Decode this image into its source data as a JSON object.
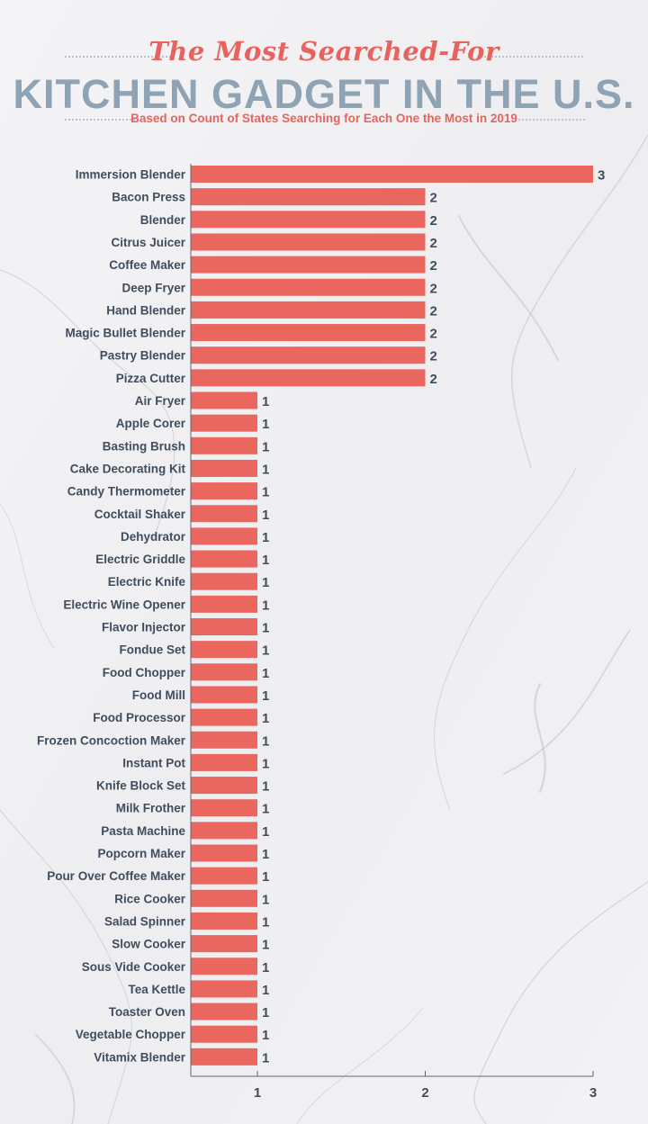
{
  "header": {
    "script_title": "The Most Searched-For",
    "main_title": "KITCHEN GADGET IN THE U.S.",
    "subtitle": "Based on Count of States Searching for Each One the Most in 2019"
  },
  "colors": {
    "bar": "#e9675f",
    "title_script": "#e8635d",
    "title_main": "#8ea3b4",
    "text": "#3f4d5c",
    "axis": "#5b6775"
  },
  "chart_data": {
    "type": "bar",
    "orientation": "horizontal",
    "title": "The Most Searched-For KITCHEN GADGET IN THE U.S.",
    "subtitle": "Based on Count of States Searching for Each One the Most in 2019",
    "xlabel": "",
    "ylabel": "",
    "xlim": [
      0.6,
      3.0
    ],
    "xticks": [
      1,
      2,
      3
    ],
    "grid": false,
    "categories": [
      "Immersion Blender",
      "Bacon Press",
      "Blender",
      "Citrus Juicer",
      "Coffee Maker",
      "Deep Fryer",
      "Hand Blender",
      "Magic Bullet Blender",
      "Pastry Blender",
      "Pizza Cutter",
      "Air Fryer",
      "Apple Corer",
      "Basting Brush",
      "Cake Decorating Kit",
      "Candy Thermometer",
      "Cocktail Shaker",
      "Dehydrator",
      "Electric Griddle",
      "Electric Knife",
      "Electric Wine Opener",
      "Flavor Injector",
      "Fondue Set",
      "Food Chopper",
      "Food Mill",
      "Food Processor",
      "Frozen Concoction Maker",
      "Instant Pot",
      "Knife Block Set",
      "Milk Frother",
      "Pasta Machine",
      "Popcorn Maker",
      "Pour Over Coffee Maker",
      "Rice Cooker",
      "Salad Spinner",
      "Slow Cooker",
      "Sous Vide Cooker",
      "Tea Kettle",
      "Toaster Oven",
      "Vegetable Chopper",
      "Vitamix Blender"
    ],
    "values": [
      3,
      2,
      2,
      2,
      2,
      2,
      2,
      2,
      2,
      2,
      1,
      1,
      1,
      1,
      1,
      1,
      1,
      1,
      1,
      1,
      1,
      1,
      1,
      1,
      1,
      1,
      1,
      1,
      1,
      1,
      1,
      1,
      1,
      1,
      1,
      1,
      1,
      1,
      1,
      1
    ]
  }
}
